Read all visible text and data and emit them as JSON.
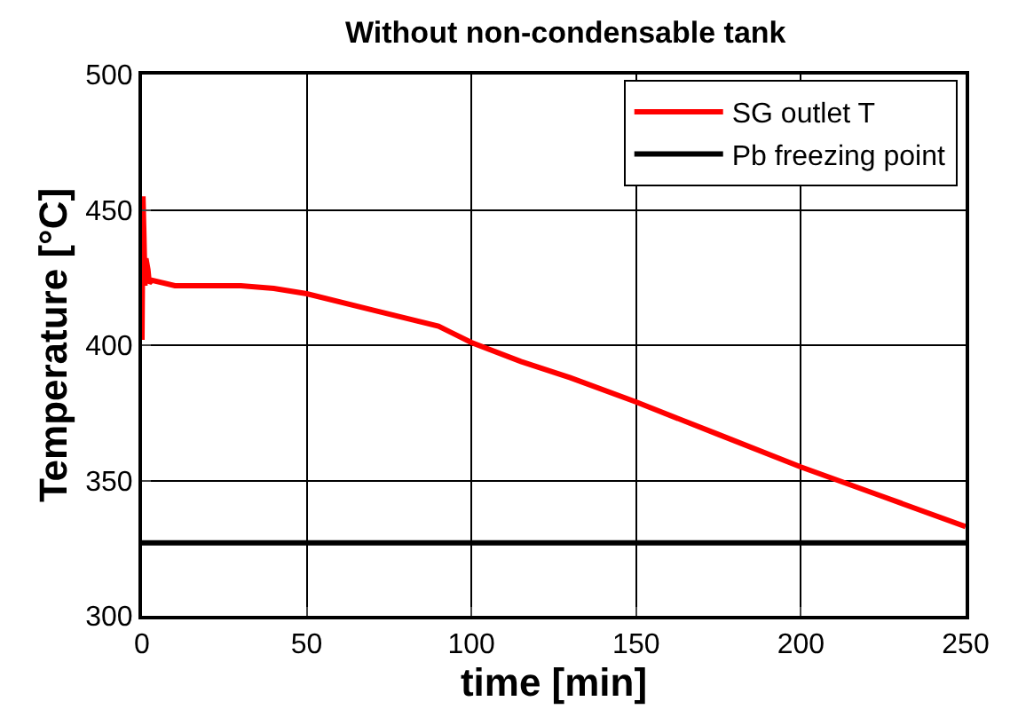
{
  "chart_data": {
    "type": "line",
    "title": "Without non-condensable tank",
    "xlabel": "time [min]",
    "ylabel": "Temperature [°C]",
    "xlim": [
      0,
      250
    ],
    "xticks": [
      0,
      50,
      100,
      150,
      200,
      250
    ],
    "ylim": [
      300,
      500
    ],
    "yticks": [
      300,
      350,
      400,
      450,
      500
    ],
    "grid": true,
    "legend": "top right",
    "marker": "none",
    "line_style": "solid",
    "series": [
      {
        "name": "SG outlet T",
        "color": "#ff0000",
        "x": [
          0,
          0.3,
          0.6,
          0.9,
          1.2,
          1.8,
          2.2,
          3,
          10,
          30,
          40,
          50,
          70,
          90,
          100,
          115,
          130,
          150,
          175,
          200,
          225,
          250
        ],
        "values": [
          402,
          455,
          440,
          422,
          432,
          428,
          423,
          424,
          422,
          422,
          421,
          419,
          413,
          407,
          401,
          394,
          388,
          379,
          367,
          355,
          344,
          333
        ]
      },
      {
        "name": "Pb freezing point",
        "color": "#000000",
        "x": [
          0,
          250
        ],
        "values": [
          327,
          327
        ]
      }
    ]
  }
}
